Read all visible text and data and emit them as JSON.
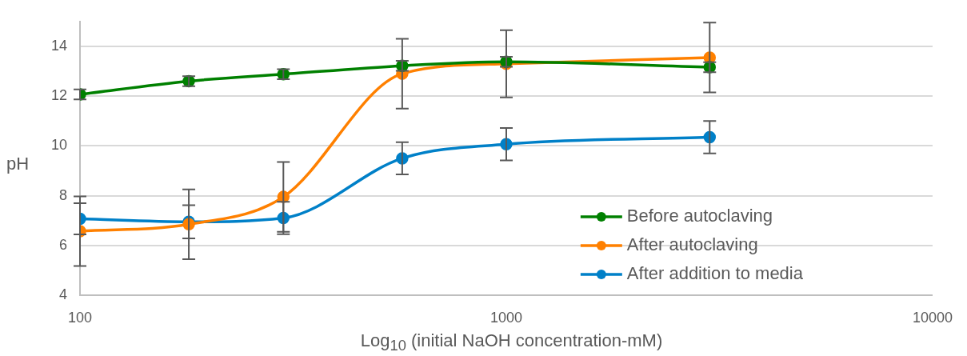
{
  "chart_data": {
    "type": "line",
    "xlabel": "Log$_{10}$ (initial NaOH concentration-mM)",
    "ylabel": "pH",
    "x": [
      100,
      180,
      300,
      570,
      1000,
      3000
    ],
    "series": [
      {
        "name": "Before autoclaving",
        "color": "#008000",
        "values": [
          12.07,
          12.6,
          12.88,
          13.22,
          13.38,
          13.16
        ],
        "errors": [
          0.2,
          0.2,
          0.2,
          0.2,
          0.2,
          0.2
        ]
      },
      {
        "name": "After autoclaving",
        "color": "#ff8000",
        "values": [
          6.57,
          6.85,
          7.95,
          12.9,
          13.3,
          13.55
        ],
        "errors": [
          1.4,
          1.4,
          1.4,
          1.4,
          1.35,
          1.4
        ]
      },
      {
        "name": "After addition to media",
        "color": "#0080c8",
        "values": [
          7.07,
          6.95,
          7.1,
          9.5,
          10.07,
          10.35
        ],
        "errors": [
          0.63,
          0.67,
          0.65,
          0.65,
          0.65,
          0.65
        ]
      }
    ],
    "log": "x",
    "xlim": [
      100,
      10000
    ],
    "xticks": [
      100,
      1000,
      10000
    ],
    "ylim": [
      4,
      15
    ],
    "yticks": [
      4,
      6,
      8,
      10,
      12,
      14
    ],
    "grid": "y",
    "legend": "bottom right",
    "marker": "circle",
    "line_style": "solid"
  }
}
